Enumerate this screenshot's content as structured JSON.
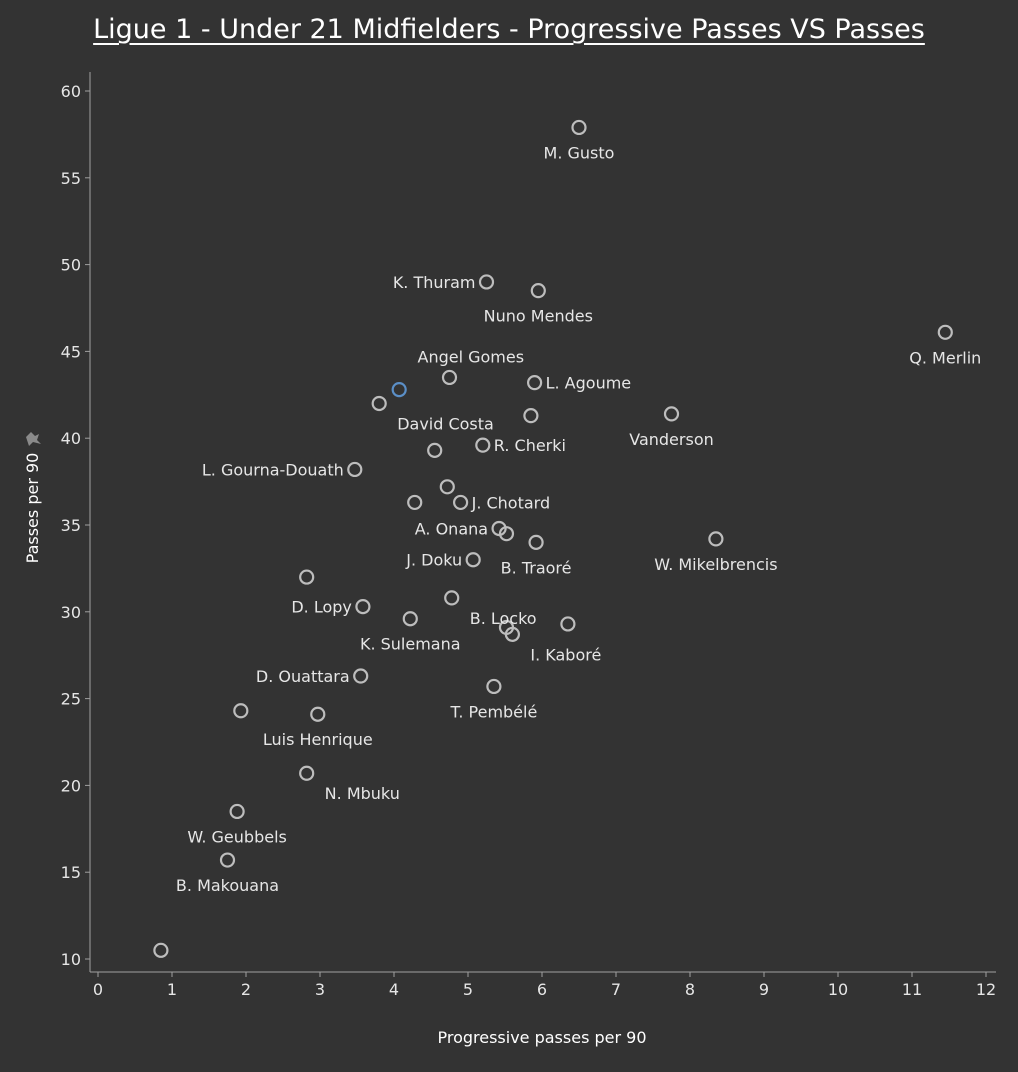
{
  "chart_data": {
    "type": "scatter",
    "title": "Ligue 1 - Under 21 Midfielders - Progressive Passes VS Passes",
    "xlabel": "Progressive passes per 90",
    "ylabel": "Passes per 90",
    "xlim": [
      0,
      12
    ],
    "ylim": [
      10,
      60
    ],
    "x_ticks": [
      "0",
      "1",
      "2",
      "3",
      "4",
      "5",
      "6",
      "7",
      "8",
      "9",
      "10",
      "11",
      "12"
    ],
    "y_ticks": [
      "10",
      "15",
      "20",
      "25",
      "30",
      "35",
      "40",
      "45",
      "50",
      "55",
      "60"
    ],
    "grid": false,
    "colors": {
      "background": "#333333",
      "marker": "#bdbdbd",
      "highlight_marker": "#5b8fc7",
      "text": "#e6e6e6"
    },
    "points": [
      {
        "label": "M. Gusto",
        "x": 6.5,
        "y": 57.9,
        "label_pos": "below"
      },
      {
        "label": "K. Thuram",
        "x": 5.25,
        "y": 49.0,
        "label_pos": "left"
      },
      {
        "label": "Nuno Mendes",
        "x": 5.95,
        "y": 48.5,
        "label_pos": "below"
      },
      {
        "label": "Q. Merlin",
        "x": 11.45,
        "y": 46.1,
        "label_pos": "below"
      },
      {
        "label": "Angel Gomes",
        "x": 4.75,
        "y": 43.5,
        "label_pos": "above-right"
      },
      {
        "label": "L. Agoume",
        "x": 5.9,
        "y": 43.2,
        "label_pos": "right"
      },
      {
        "label": "",
        "x": 4.07,
        "y": 42.8,
        "label_pos": "none",
        "highlight": true
      },
      {
        "label": "David Costa",
        "x": 3.8,
        "y": 42.0,
        "label_pos": "below-right"
      },
      {
        "label": "",
        "x": 5.85,
        "y": 41.3,
        "label_pos": "none"
      },
      {
        "label": "Vanderson",
        "x": 7.75,
        "y": 41.4,
        "label_pos": "below"
      },
      {
        "label": "R. Cherki",
        "x": 5.2,
        "y": 39.6,
        "label_pos": "right"
      },
      {
        "label": "",
        "x": 4.55,
        "y": 39.3,
        "label_pos": "none"
      },
      {
        "label": "L. Gourna-Douath",
        "x": 3.47,
        "y": 38.2,
        "label_pos": "left"
      },
      {
        "label": "",
        "x": 4.72,
        "y": 37.2,
        "label_pos": "none"
      },
      {
        "label": "",
        "x": 4.28,
        "y": 36.3,
        "label_pos": "none"
      },
      {
        "label": "J. Chotard",
        "x": 4.9,
        "y": 36.3,
        "label_pos": "right"
      },
      {
        "label": "A. Onana",
        "x": 5.42,
        "y": 34.8,
        "label_pos": "left"
      },
      {
        "label": "",
        "x": 5.52,
        "y": 34.5,
        "label_pos": "none"
      },
      {
        "label": "W. Mikelbrencis",
        "x": 8.35,
        "y": 34.2,
        "label_pos": "below"
      },
      {
        "label": "B. Traoré",
        "x": 5.92,
        "y": 34.0,
        "label_pos": "below"
      },
      {
        "label": "J. Doku",
        "x": 5.07,
        "y": 33.0,
        "label_pos": "left"
      },
      {
        "label": "",
        "x": 2.82,
        "y": 32.0,
        "label_pos": "none"
      },
      {
        "label": "B. Locko",
        "x": 4.78,
        "y": 30.8,
        "label_pos": "below-right"
      },
      {
        "label": "D. Lopy",
        "x": 3.58,
        "y": 30.3,
        "label_pos": "left"
      },
      {
        "label": "K. Sulemana",
        "x": 4.22,
        "y": 29.6,
        "label_pos": "below"
      },
      {
        "label": "",
        "x": 6.35,
        "y": 29.3,
        "label_pos": "none"
      },
      {
        "label": "",
        "x": 5.52,
        "y": 29.1,
        "label_pos": "none"
      },
      {
        "label": "I. Kaboré",
        "x": 5.6,
        "y": 28.7,
        "label_pos": "below-right"
      },
      {
        "label": "D. Ouattara",
        "x": 3.55,
        "y": 26.3,
        "label_pos": "left"
      },
      {
        "label": "T. Pembélé",
        "x": 5.35,
        "y": 25.7,
        "label_pos": "below"
      },
      {
        "label": "",
        "x": 1.93,
        "y": 24.3,
        "label_pos": "none"
      },
      {
        "label": "Luis Henrique",
        "x": 2.97,
        "y": 24.1,
        "label_pos": "below"
      },
      {
        "label": "N. Mbuku",
        "x": 2.82,
        "y": 20.7,
        "label_pos": "below-right"
      },
      {
        "label": "W. Geubbels",
        "x": 1.88,
        "y": 18.5,
        "label_pos": "below"
      },
      {
        "label": "B. Makouana",
        "x": 1.75,
        "y": 15.7,
        "label_pos": "below"
      },
      {
        "label": "",
        "x": 0.85,
        "y": 10.5,
        "label_pos": "none"
      }
    ]
  }
}
